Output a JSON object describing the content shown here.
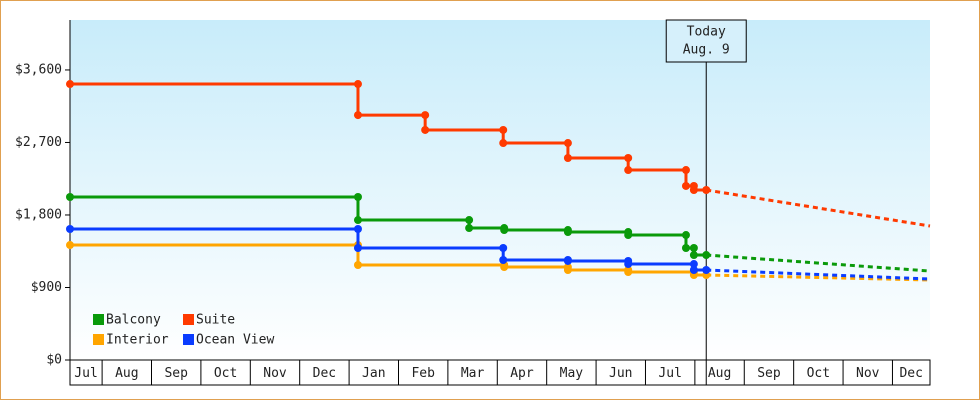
{
  "chart_data": {
    "type": "step-line",
    "xlim": [
      0.35,
      17.76
    ],
    "xticks": [
      {
        "value": 0.5,
        "label": "Jul"
      },
      {
        "value": 1.5,
        "label": "Aug"
      },
      {
        "value": 2.5,
        "label": "Sep"
      },
      {
        "value": 3.5,
        "label": "Oct"
      },
      {
        "value": 4.5,
        "label": "Nov"
      },
      {
        "value": 5.5,
        "label": "Dec"
      },
      {
        "value": 6.5,
        "label": "Jan"
      },
      {
        "value": 7.5,
        "label": "Feb"
      },
      {
        "value": 8.5,
        "label": "Mar"
      },
      {
        "value": 9.5,
        "label": "Apr"
      },
      {
        "value": 10.5,
        "label": "May"
      },
      {
        "value": 11.5,
        "label": "Jun"
      },
      {
        "value": 12.5,
        "label": "Jul"
      },
      {
        "value": 13.5,
        "label": "Aug"
      },
      {
        "value": 14.5,
        "label": "Sep"
      },
      {
        "value": 15.5,
        "label": "Oct"
      },
      {
        "value": 16.5,
        "label": "Nov"
      },
      {
        "value": 17.5,
        "label": "Dec"
      }
    ],
    "ylim": [
      0,
      4220
    ],
    "yticks": [
      {
        "value": 0,
        "label": "$0"
      },
      {
        "value": 900,
        "label": "$900"
      },
      {
        "value": 1800,
        "label": "$1,800"
      },
      {
        "value": 2700,
        "label": "$2,700"
      },
      {
        "value": 3600,
        "label": "$3,600"
      }
    ],
    "grid": false,
    "legend": "lower left",
    "annotation": {
      "x": 13.23,
      "lines": [
        "Today",
        "Aug. 9"
      ]
    },
    "series": [
      {
        "name": "Balcony",
        "color": "#0a9a0a",
        "x": [
          0.35,
          6.18,
          6.18,
          8.43,
          8.43,
          9.14,
          9.14,
          10.43,
          10.43,
          11.65,
          11.65,
          12.82,
          12.82,
          12.98,
          12.98,
          13.23
        ],
        "values": [
          2023,
          2023,
          1737,
          1737,
          1638,
          1638,
          1613,
          1613,
          1588,
          1588,
          1551,
          1551,
          1390,
          1390,
          1303,
          1303
        ],
        "forecast": {
          "x": [
            13.23,
            17.76
          ],
          "values": [
            1303,
            1104
          ]
        }
      },
      {
        "name": "Suite",
        "color": "#ff3a00",
        "x": [
          0.35,
          6.18,
          6.18,
          7.54,
          7.54,
          9.12,
          9.12,
          10.43,
          10.43,
          11.65,
          11.65,
          12.82,
          12.82,
          12.98,
          12.98,
          13.23
        ],
        "values": [
          3425,
          3425,
          3040,
          3040,
          2855,
          2855,
          2693,
          2693,
          2507,
          2507,
          2358,
          2358,
          2160,
          2160,
          2110,
          2110
        ],
        "forecast": {
          "x": [
            13.23,
            17.76
          ],
          "values": [
            2110,
            1663
          ]
        }
      },
      {
        "name": "Interior",
        "color": "#ffa500",
        "x": [
          0.35,
          6.18,
          6.18,
          9.14,
          9.14,
          10.43,
          10.43,
          11.65,
          11.65,
          12.98,
          12.98,
          13.23
        ],
        "values": [
          1427,
          1427,
          1179,
          1179,
          1154,
          1154,
          1117,
          1117,
          1092,
          1092,
          1055,
          1055
        ],
        "forecast": {
          "x": [
            13.23,
            17.76
          ],
          "values": [
            1055,
            993
          ]
        }
      },
      {
        "name": "Ocean View",
        "color": "#0a3cff",
        "x": [
          0.35,
          6.18,
          6.18,
          9.12,
          9.12,
          10.43,
          10.43,
          11.65,
          11.65,
          12.98,
          12.98,
          13.23
        ],
        "values": [
          1626,
          1626,
          1390,
          1390,
          1241,
          1241,
          1229,
          1229,
          1191,
          1191,
          1117,
          1117
        ],
        "forecast": {
          "x": [
            13.23,
            17.76
          ],
          "values": [
            1117,
            1005
          ]
        }
      }
    ]
  }
}
